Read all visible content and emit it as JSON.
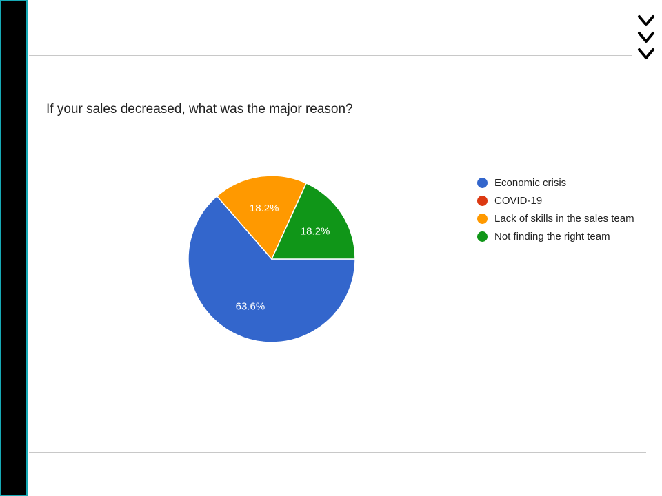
{
  "chart_data": {
    "type": "pie",
    "title": "If your sales decreased, what was the major reason?",
    "categories": [
      "Economic crisis",
      "COVID-19",
      "Lack of skills in the sales team",
      "Not finding the right team"
    ],
    "values": [
      63.6,
      0,
      18.2,
      18.2
    ],
    "slice_labels": [
      "63.6%",
      "",
      "18.2%",
      "18.2%"
    ],
    "colors": [
      "#3366cc",
      "#dc3912",
      "#ff9900",
      "#109618"
    ],
    "legend_position": "right"
  },
  "decoration": {
    "chevron_icon": "chevron-down-icon"
  }
}
